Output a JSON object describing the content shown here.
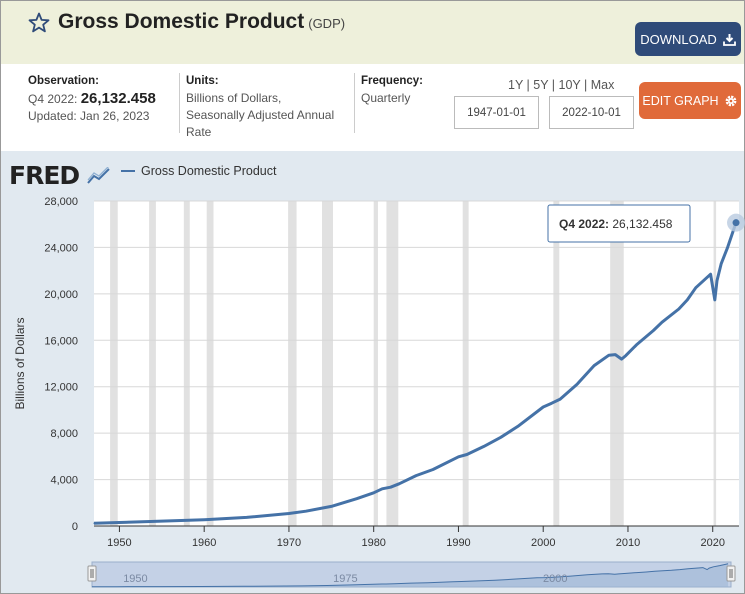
{
  "header": {
    "title": "Gross Domestic Product",
    "series_code": "(GDP)",
    "download_label": "DOWNLOAD",
    "background_color": "#eef0db"
  },
  "meta": {
    "observation_label": "Observation:",
    "observation_period": "Q4 2022:",
    "observation_value": "26,132.458",
    "updated": "Updated: Jan 26, 2023",
    "units_label": "Units:",
    "units_line1": "Billions of Dollars,",
    "units_line2": "Seasonally Adjusted Annual",
    "units_line3": "Rate",
    "frequency_label": "Frequency:",
    "frequency_value": "Quarterly",
    "range_links": "1Y | 5Y | 10Y | Max",
    "start_date": "1947-01-01",
    "end_date": "2022-10-01",
    "edit_label": "EDIT GRAPH",
    "edit_color": "#e06a3a",
    "download_color": "#2f4b79"
  },
  "logo": {
    "text": "FRED"
  },
  "chart_data": {
    "type": "line",
    "title": "Gross Domestic Product",
    "ylabel": "Billions of Dollars",
    "xlim": [
      1947,
      2023.1
    ],
    "ylim": [
      0,
      28000
    ],
    "y_ticks": [
      0,
      4000,
      8000,
      12000,
      16000,
      20000,
      24000,
      28000
    ],
    "y_tick_labels": [
      "0",
      "4,000",
      "8,000",
      "12,000",
      "16,000",
      "20,000",
      "24,000",
      "28,000"
    ],
    "x_ticks": [
      1950,
      1960,
      1970,
      1980,
      1990,
      2000,
      2010,
      2020
    ],
    "x_tick_labels": [
      "1950",
      "1960",
      "1970",
      "1980",
      "1990",
      "2000",
      "2010",
      "2020"
    ],
    "line_color": "#4572a7",
    "series": [
      {
        "name": "Gross Domestic Product",
        "x": [
          1947,
          1950,
          1955,
          1960,
          1965,
          1970,
          1972,
          1975,
          1978,
          1980,
          1981,
          1982,
          1983,
          1985,
          1987,
          1990,
          1991,
          1993,
          1995,
          1997,
          2000,
          2001,
          2002,
          2004,
          2006,
          2007.75,
          2008.5,
          2009.25,
          2009.75,
          2011,
          2013,
          2014,
          2016,
          2017,
          2018,
          2019.75,
          2020.25,
          2020.5,
          2021,
          2021.75,
          2022.75
        ],
        "values": [
          243,
          300,
          426,
          542,
          744,
          1073,
          1277,
          1685,
          2353,
          2857,
          3207,
          3343,
          3634,
          4339,
          4870,
          5963,
          6158,
          6858,
          7640,
          8578,
          10252,
          10582,
          10936,
          12213,
          13815,
          14716,
          14770,
          14381,
          14681,
          15600,
          16844,
          17550,
          18695,
          19477,
          20533,
          21694,
          19477,
          21139,
          22600,
          24000,
          26132
        ]
      }
    ],
    "recessions": [
      [
        1948.9,
        1949.8
      ],
      [
        1953.5,
        1954.3
      ],
      [
        1957.6,
        1958.3
      ],
      [
        1960.3,
        1961.1
      ],
      [
        1969.9,
        1970.9
      ],
      [
        1973.9,
        1975.2
      ],
      [
        1980.0,
        1980.5
      ],
      [
        1981.5,
        1982.9
      ],
      [
        1990.5,
        1991.2
      ],
      [
        2001.2,
        2001.9
      ],
      [
        2007.9,
        2009.5
      ],
      [
        2020.1,
        2020.4
      ]
    ],
    "recession_color": "#e1e1e1",
    "tooltip": {
      "label": "Q4 2022:",
      "value": "26,132.458"
    },
    "last_point": {
      "x": 2022.75,
      "y": 26132
    },
    "navigator": {
      "labels": [
        "1950",
        "1975",
        "2000"
      ],
      "label_years": [
        1950,
        1975,
        2000
      ]
    }
  }
}
